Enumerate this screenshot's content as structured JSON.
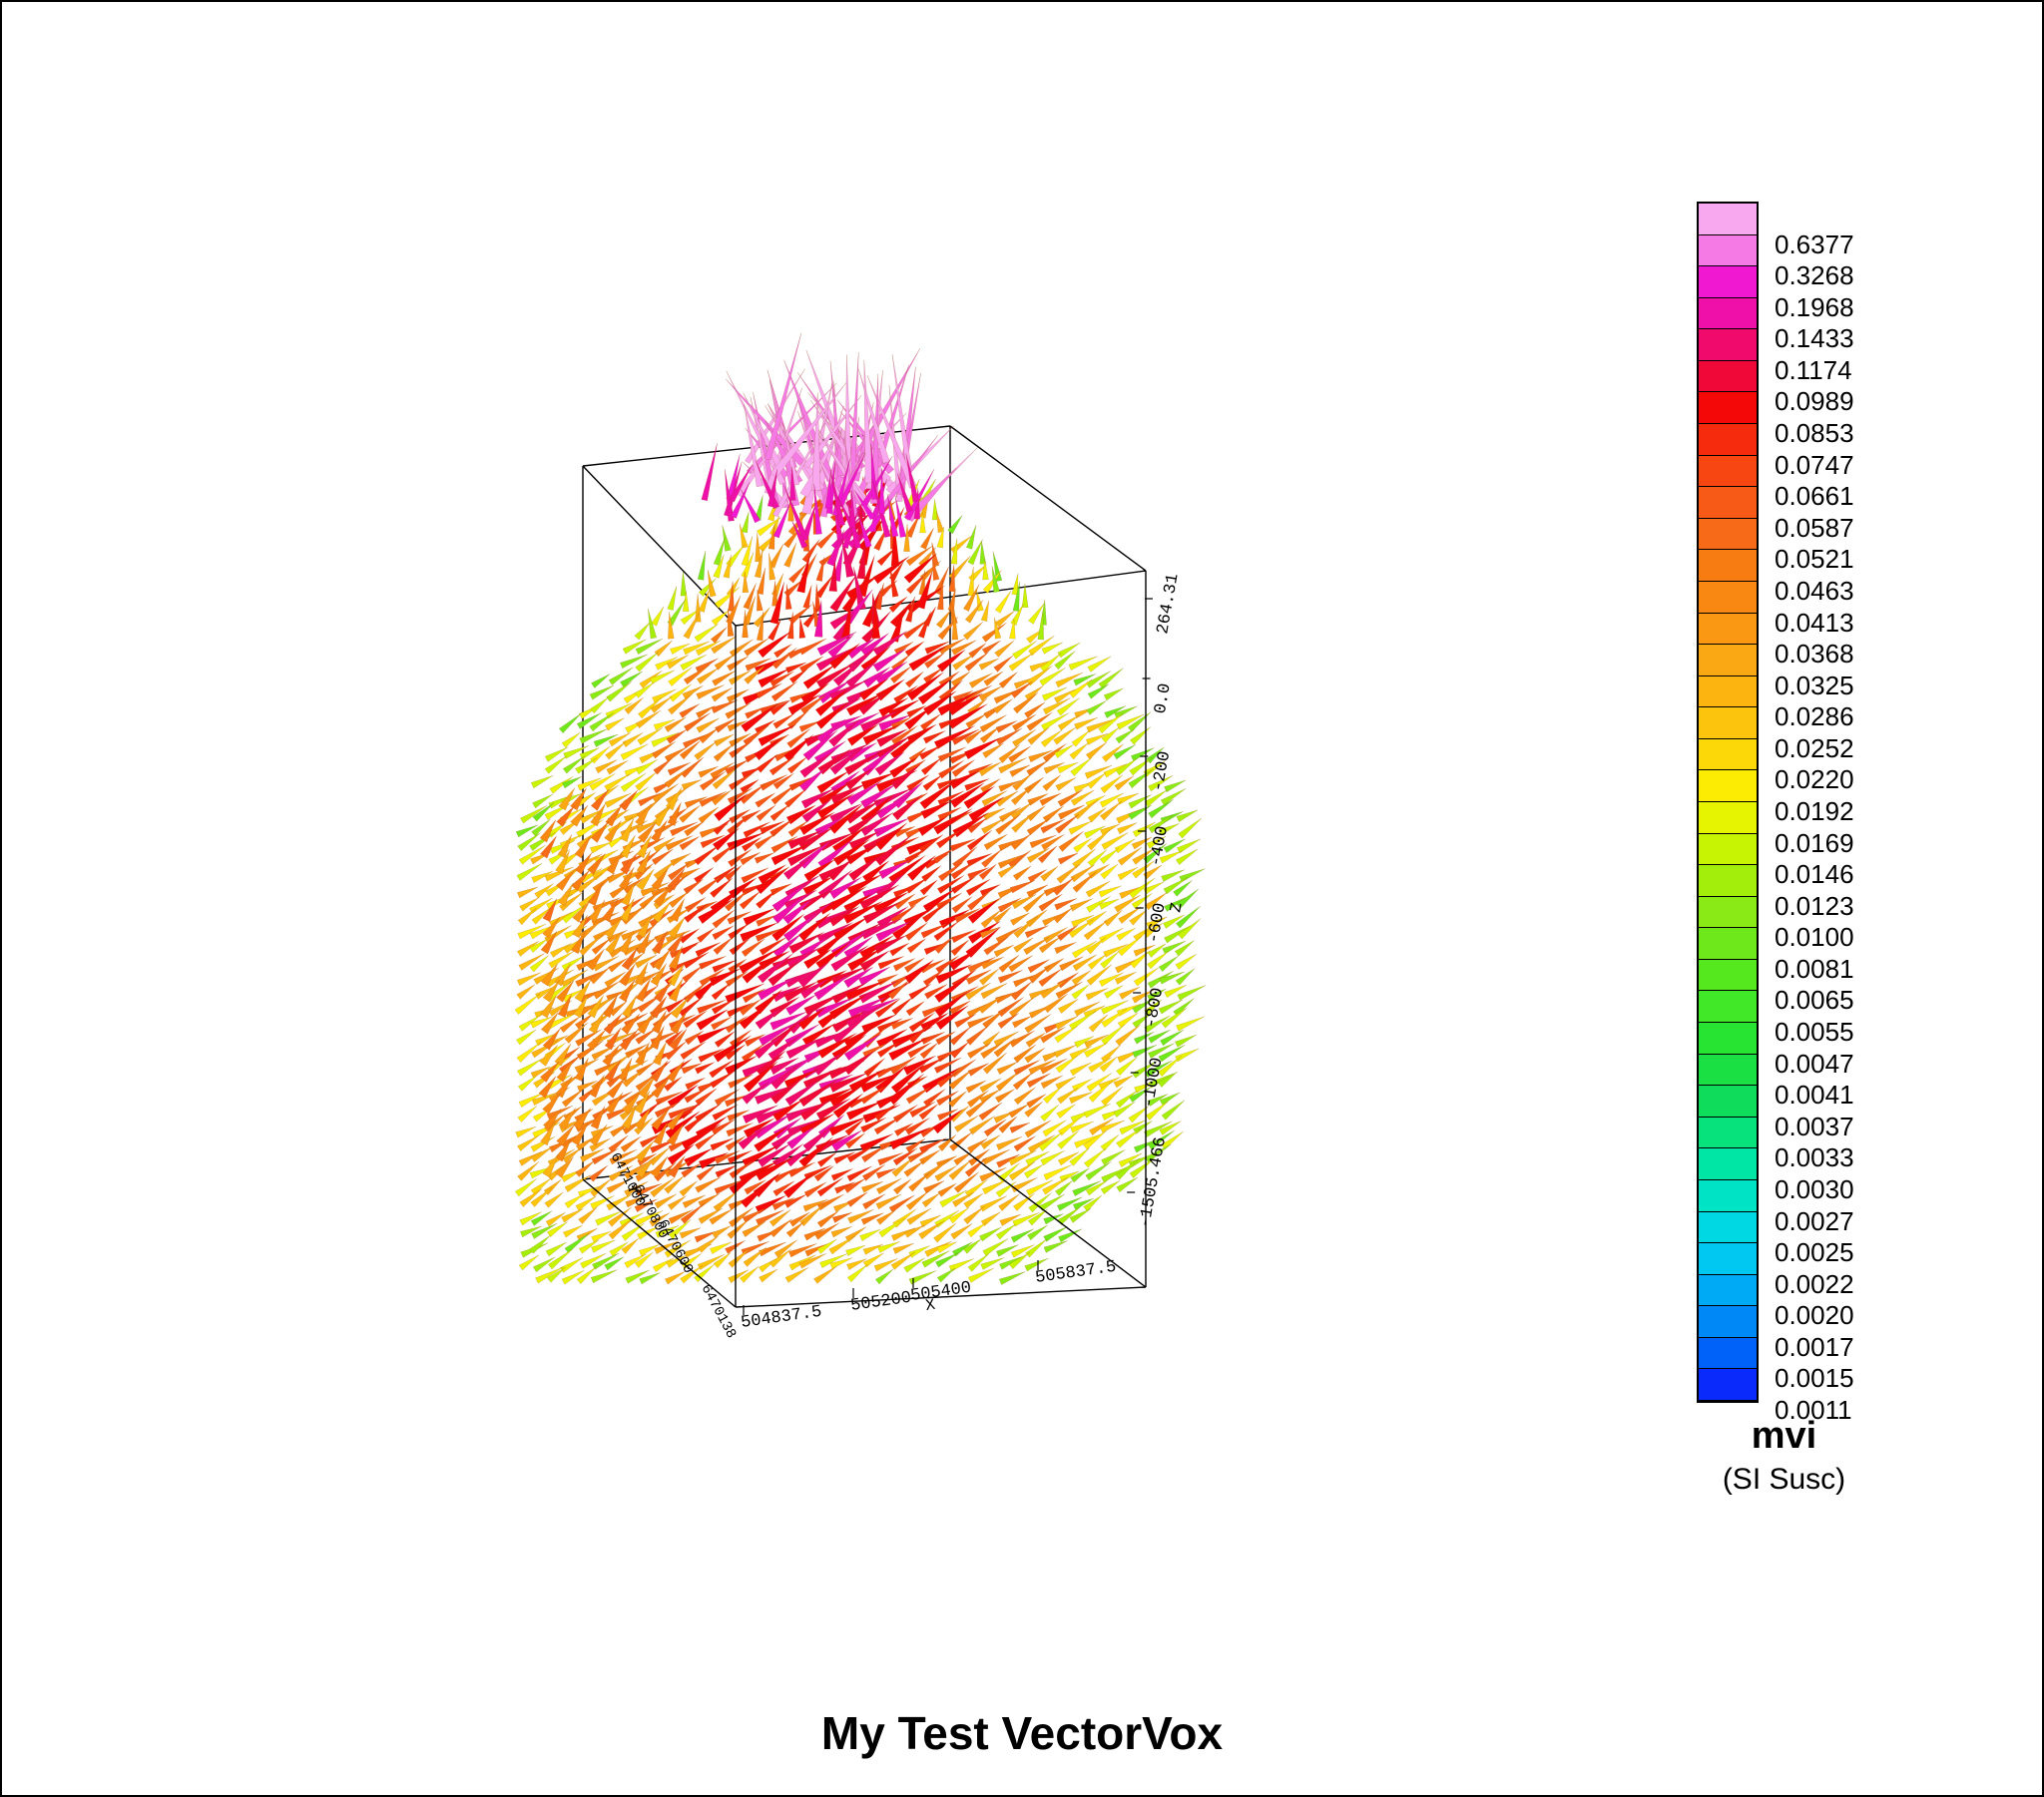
{
  "chart_data": {
    "type": "3d-vector-voxel",
    "title": "My Test VectorVox",
    "axes": {
      "x": {
        "label": "X",
        "ticks": [
          "504837.5",
          "505200",
          "505400",
          "505837.5"
        ]
      },
      "y": {
        "label": "Y",
        "ticks": [
          "6470138",
          "6470600",
          "6470800",
          "6471000"
        ]
      },
      "z": {
        "label": "Z",
        "ticks": [
          "264.31",
          "0.0",
          "-200",
          "-400",
          "-600",
          "-800",
          "-1000",
          "-1505.466"
        ]
      }
    },
    "legend": {
      "name": "mvi",
      "units": "(SI Susc)",
      "placement": "right",
      "values": [
        "0.6377",
        "0.3268",
        "0.1968",
        "0.1433",
        "0.1174",
        "0.0989",
        "0.0853",
        "0.0747",
        "0.0661",
        "0.0587",
        "0.0521",
        "0.0463",
        "0.0413",
        "0.0368",
        "0.0325",
        "0.0286",
        "0.0252",
        "0.0220",
        "0.0192",
        "0.0169",
        "0.0146",
        "0.0123",
        "0.0100",
        "0.0081",
        "0.0065",
        "0.0055",
        "0.0047",
        "0.0041",
        "0.0037",
        "0.0033",
        "0.0030",
        "0.0027",
        "0.0025",
        "0.0022",
        "0.0020",
        "0.0017",
        "0.0015",
        "0.0011"
      ],
      "colors": [
        "#f7a8ee",
        "#f57ae5",
        "#f018d0",
        "#ee10a8",
        "#ef0a6c",
        "#f00838",
        "#f40808",
        "#f62a0c",
        "#f74612",
        "#f75a16",
        "#f76a18",
        "#f77c12",
        "#f88812",
        "#fa9814",
        "#faa814",
        "#fcb410",
        "#fcc40c",
        "#fcd808",
        "#fcec04",
        "#e6f402",
        "#c6f402",
        "#a4ee0c",
        "#8aea16",
        "#6ee81a",
        "#56e81e",
        "#40e828",
        "#28e432",
        "#1ae044",
        "#10dc5c",
        "#08e27c",
        "#00e6a4",
        "#00e4c6",
        "#00d8e4",
        "#00c8f0",
        "#00aaf4",
        "#0088f6",
        "#0062f8",
        "#0a2afc"
      ]
    }
  }
}
